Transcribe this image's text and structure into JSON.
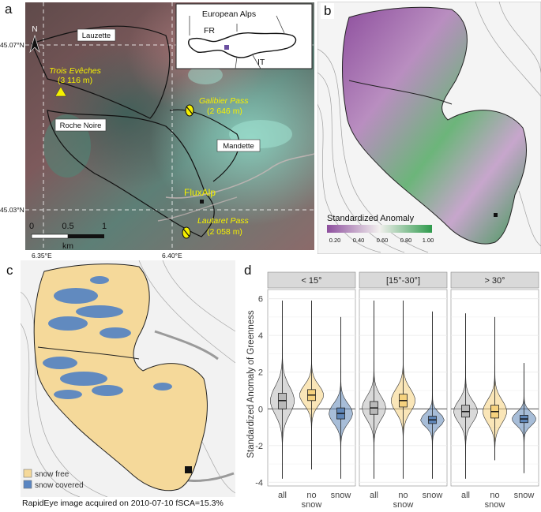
{
  "panels": {
    "a": {
      "label": "a",
      "inset": {
        "title": "European Alps",
        "country_left": "FR",
        "country_right": "IT"
      },
      "places": {
        "lauzette": "Lauzette",
        "roche_noire": "Roche Noire",
        "mandette": "Mandette",
        "trois_eveches": "Trois Evêches",
        "trois_eveches_alt": "(3 116 m)",
        "galibier": "Galibier Pass",
        "galibier_alt": "(2 646 m)",
        "lautaret": "Lautaret Pass",
        "lautaret_alt": "(2 058 m)",
        "fluxalp": "FluxAlp"
      },
      "lat_labels": [
        "45.07°N",
        "45.03°N"
      ],
      "lon_labels": [
        "6.35°E",
        "6.40°E"
      ],
      "scale": {
        "ticks": [
          "0",
          "0.5",
          "1"
        ],
        "unit": "km"
      },
      "north": "N",
      "colors": {
        "veg": "#8a5a5a",
        "rock": "#4f8a7e",
        "snow": "#8fd8c6",
        "marker": "#f5f000"
      }
    },
    "b": {
      "label": "b",
      "legend_title": "Standardized Anomaly",
      "legend_ticks": [
        "0.20",
        "0.40",
        "0.60",
        "0.80",
        "1.00"
      ],
      "colors": {
        "low": "#8e4f9e",
        "mid": "#f2f0ee",
        "high": "#2e9a4c"
      }
    },
    "c": {
      "label": "c",
      "legend": [
        {
          "label": "snow free",
          "color": "#f5d99a"
        },
        {
          "label": "snow covered",
          "color": "#5a86c2"
        }
      ]
    },
    "d": {
      "label": "d"
    }
  },
  "caption": "RapidEye image acquired on 2010-07-10  fSCA=15.3%",
  "chart_data": {
    "type": "violin",
    "ylabel": "Standardized Anomaly of Greenness",
    "ylim": [
      -4.2,
      6.5
    ],
    "yticks": [
      "-4",
      "-2",
      "0",
      "2",
      "4",
      "6"
    ],
    "facets": [
      "< 15°",
      "[15°-30°]",
      "> 30°"
    ],
    "categories": [
      "all",
      "no\nsnow",
      "snow"
    ],
    "colors": {
      "all": "#b9b9b9",
      "no snow": "#f6d27e",
      "snow": "#5f86b8"
    },
    "series": [
      {
        "facet": "< 15°",
        "groups": [
          {
            "name": "all",
            "min": -3.8,
            "q1": 0.0,
            "median": 0.45,
            "q3": 0.85,
            "max": 5.9
          },
          {
            "name": "no snow",
            "min": -3.3,
            "q1": 0.45,
            "median": 0.75,
            "q3": 1.05,
            "max": 5.9
          },
          {
            "name": "snow",
            "min": -3.8,
            "q1": -0.55,
            "median": -0.25,
            "q3": 0.05,
            "max": 5.0
          }
        ]
      },
      {
        "facet": "[15°-30°]",
        "groups": [
          {
            "name": "all",
            "min": -3.8,
            "q1": -0.3,
            "median": 0.05,
            "q3": 0.4,
            "max": 5.9
          },
          {
            "name": "no snow",
            "min": -3.8,
            "q1": 0.1,
            "median": 0.45,
            "q3": 0.8,
            "max": 5.9
          },
          {
            "name": "snow",
            "min": -3.8,
            "q1": -0.8,
            "median": -0.6,
            "q3": -0.4,
            "max": 5.3
          }
        ]
      },
      {
        "facet": "> 30°",
        "groups": [
          {
            "name": "all",
            "min": -3.8,
            "q1": -0.45,
            "median": -0.15,
            "q3": 0.2,
            "max": 5.2
          },
          {
            "name": "no snow",
            "min": -2.8,
            "q1": -0.5,
            "median": -0.15,
            "q3": 0.2,
            "max": 5.0
          },
          {
            "name": "snow",
            "min": -3.5,
            "q1": -0.75,
            "median": -0.55,
            "q3": -0.35,
            "max": 2.5
          }
        ]
      }
    ],
    "reference_line": 0
  }
}
